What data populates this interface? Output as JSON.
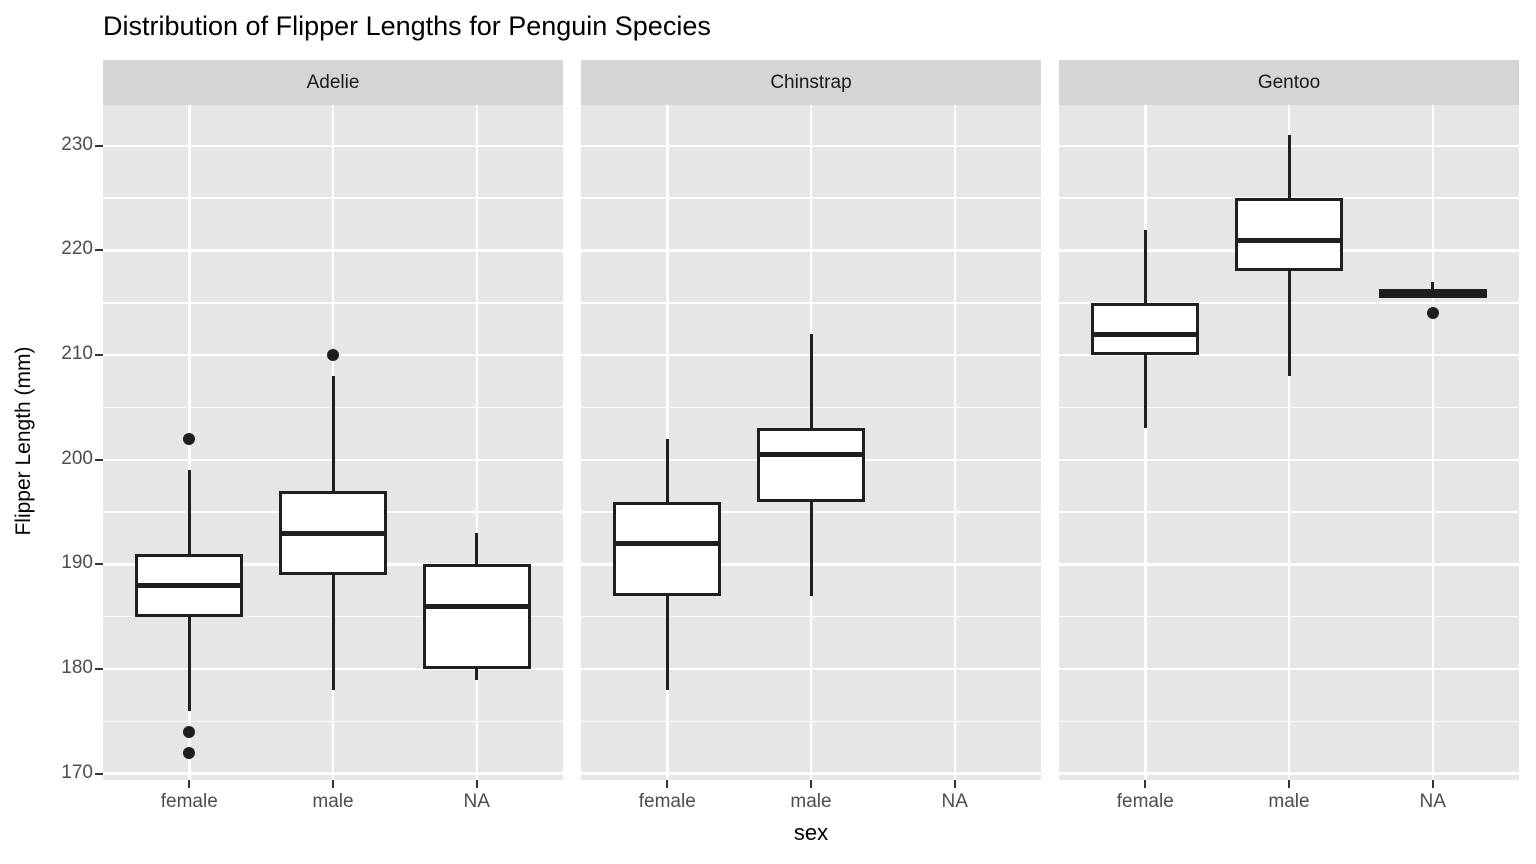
{
  "chart_data": {
    "type": "boxplot",
    "title": "Distribution of Flipper Lengths for Penguin Species",
    "xlabel": "sex",
    "ylabel": "Flipper Length (mm)",
    "ylim": [
      169.4,
      233.9
    ],
    "yticks_major": [
      170,
      180,
      190,
      200,
      210,
      220,
      230
    ],
    "yticks_minor": [
      175,
      185,
      195,
      205,
      215,
      225
    ],
    "categories": [
      "female",
      "male",
      "NA"
    ],
    "grid": true,
    "legend": "none",
    "facets": [
      {
        "label": "Adelie",
        "boxes": [
          {
            "category": "female",
            "whisker_low": 176,
            "q1": 185,
            "median": 188,
            "q3": 191,
            "whisker_high": 199,
            "outliers": [
              202,
              174,
              172
            ]
          },
          {
            "category": "male",
            "whisker_low": 178,
            "q1": 189,
            "median": 193,
            "q3": 197,
            "whisker_high": 208,
            "outliers": [
              210
            ]
          },
          {
            "category": "NA",
            "whisker_low": 179,
            "q1": 180,
            "median": 186,
            "q3": 190,
            "whisker_high": 193,
            "outliers": []
          }
        ]
      },
      {
        "label": "Chinstrap",
        "boxes": [
          {
            "category": "female",
            "whisker_low": 178,
            "q1": 187,
            "median": 192,
            "q3": 196,
            "whisker_high": 202,
            "outliers": []
          },
          {
            "category": "male",
            "whisker_low": 187,
            "q1": 196,
            "median": 200.5,
            "q3": 203,
            "whisker_high": 212,
            "outliers": []
          },
          {
            "category": "NA",
            "empty": true
          }
        ]
      },
      {
        "label": "Gentoo",
        "boxes": [
          {
            "category": "female",
            "whisker_low": 203,
            "q1": 210,
            "median": 212,
            "q3": 215,
            "whisker_high": 222,
            "outliers": []
          },
          {
            "category": "male",
            "whisker_low": 208,
            "q1": 218,
            "median": 221,
            "q3": 225,
            "whisker_high": 231,
            "outliers": []
          },
          {
            "category": "NA",
            "whisker_low": 215.5,
            "q1": 215.5,
            "median": 216,
            "q3": 216.3,
            "whisker_high": 217,
            "outliers": [
              214
            ]
          }
        ]
      }
    ]
  },
  "style": {
    "panel_bg": "#e6e6e6",
    "strip_bg": "#d5d5d5",
    "grid_color": "#ffffff",
    "box_color": "#1f1f1f",
    "box_fill": "#ffffff",
    "axis_text_color": "#4d4d4d",
    "tick_color": "#333333",
    "title_color": "#000000"
  }
}
